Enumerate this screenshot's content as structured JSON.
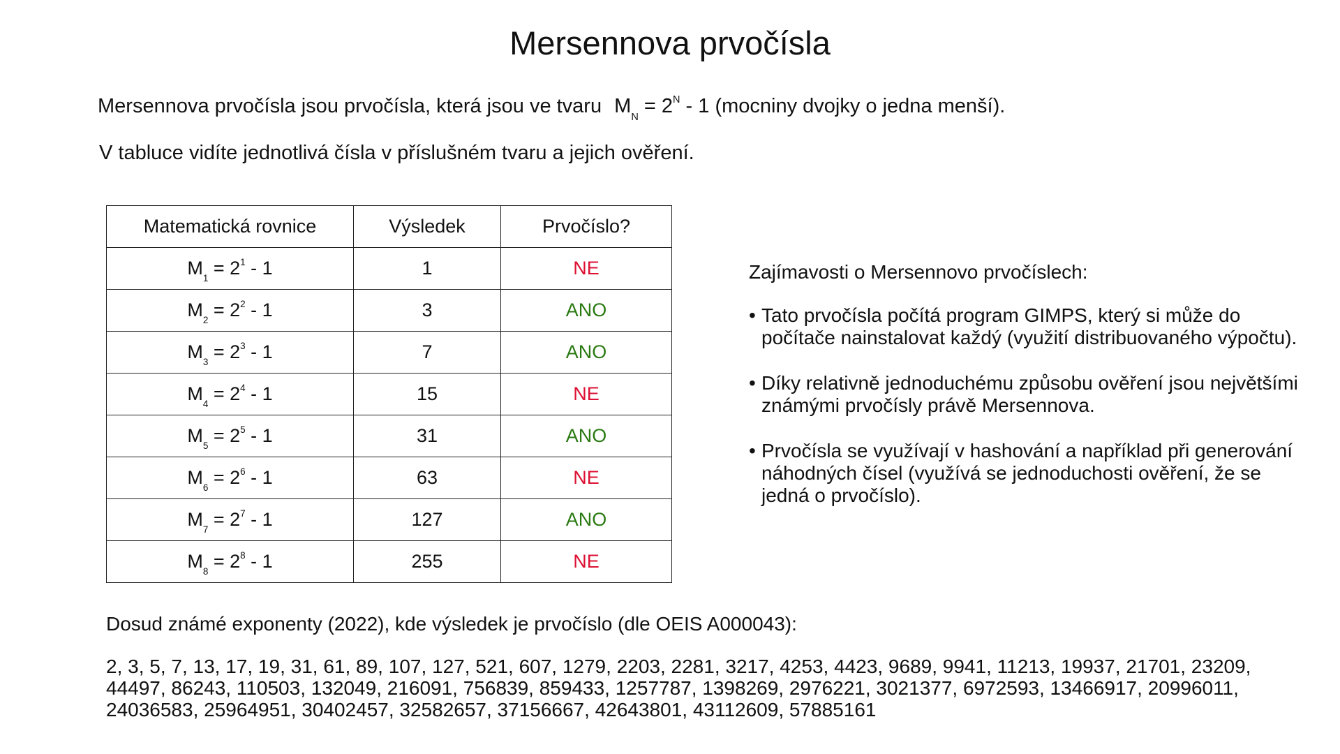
{
  "title": "Mersennova prvočísla",
  "intro": {
    "text": "Mersennova prvočísla jsou prvočísla, která jsou ve tvaru",
    "formula_base": "M",
    "formula_sub": "N",
    "formula_eq": " = 2",
    "formula_sup": "N",
    "formula_tail": " - 1",
    "suffix": "(mocniny dvojky o jedna menší)."
  },
  "subtitle": "V tabluce vidíte jednotlivá čísla v příslušném tvaru a jejich ověření.",
  "table": {
    "headers": [
      "Matematická rovnice",
      "Výsledek",
      "Prvočíslo?"
    ],
    "rows": [
      {
        "m": "M",
        "n": "1",
        "eq": " = 2",
        "exp": "1",
        "tail": " - 1",
        "result": "1",
        "prime": "NE"
      },
      {
        "m": "M",
        "n": "2",
        "eq": " = 2",
        "exp": "2",
        "tail": " - 1",
        "result": "3",
        "prime": "ANO"
      },
      {
        "m": "M",
        "n": "3",
        "eq": " = 2",
        "exp": "3",
        "tail": " - 1",
        "result": "7",
        "prime": "ANO"
      },
      {
        "m": "M",
        "n": "4",
        "eq": " = 2",
        "exp": "4",
        "tail": " - 1",
        "result": "15",
        "prime": "NE"
      },
      {
        "m": "M",
        "n": "5",
        "eq": " = 2",
        "exp": "5",
        "tail": " - 1",
        "result": "31",
        "prime": "ANO"
      },
      {
        "m": "M",
        "n": "6",
        "eq": " = 2",
        "exp": "6",
        "tail": " - 1",
        "result": "63",
        "prime": "NE"
      },
      {
        "m": "M",
        "n": "7",
        "eq": " = 2",
        "exp": "7",
        "tail": " - 1",
        "result": "127",
        "prime": "ANO"
      },
      {
        "m": "M",
        "n": "8",
        "eq": " = 2",
        "exp": "8",
        "tail": " - 1",
        "result": "255",
        "prime": "NE"
      }
    ]
  },
  "facts": {
    "heading": "Zajímavosti o Mersennovo prvočíslech:",
    "bullet": "•",
    "items": [
      "Tato prvočísla počítá program GIMPS, který si může do počítače nainstalovat každý (využití distribuovaného výpočtu).",
      "Díky relativně jednoduchému způsobu ověření jsou největšími známými prvočísly právě Mersennova.",
      "Prvočísla se využívají v hashování a například při generování náhodných čísel (využívá se jednoduchosti ověření, že se jedná o prvočíslo)."
    ]
  },
  "known": {
    "heading": "Dosud známé exponenty (2022), kde výsledek je prvočíslo (dle OEIS A000043):",
    "list": "2, 3, 5, 7, 13, 17, 19, 31, 61, 89, 107, 127, 521, 607, 1279, 2203, 2281, 3217, 4253, 4423, 9689, 9941, 11213, 19937, 21701, 23209, 44497, 86243, 110503, 132049, 216091, 756839, 859433, 1257787, 1398269, 2976221, 3021377, 6972593, 13466917, 20996011, 24036583, 25964951, 30402457, 32582657, 37156667, 42643801, 43112609, 57885161"
  },
  "colors": {
    "ano": "#2a7a12",
    "ne": "#dd1133"
  }
}
